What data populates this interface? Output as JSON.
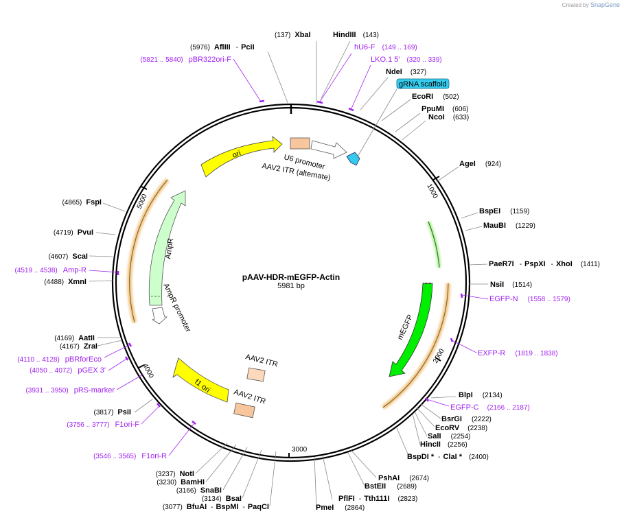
{
  "credit": {
    "prefix": "Created by",
    "brand": "SnapGene"
  },
  "plasmid": {
    "name": "pAAV-HDR-mEGFP-Actin",
    "size": "5981 bp"
  },
  "ticks": [
    "1000",
    "2000",
    "3000",
    "4000",
    "5000"
  ],
  "enzymes_right": [
    {
      "name": "XbaI",
      "pos": "(137)"
    },
    {
      "name": "HindIII",
      "pos": "(143)"
    },
    {
      "name": "NdeI",
      "pos": "(327)"
    },
    {
      "name": "EcoRI",
      "pos": "(502)"
    },
    {
      "name": "PpuMI",
      "pos": "(606)"
    },
    {
      "name": "NcoI",
      "pos": "(633)"
    },
    {
      "name": "AgeI",
      "pos": "(924)"
    },
    {
      "name": "BspEI",
      "pos": "(1159)"
    },
    {
      "name": "MauBI",
      "pos": "(1229)"
    },
    {
      "name": "PaeR7I",
      "sep1": "-",
      "name2": "PspXI",
      "sep2": "-",
      "name3": "XhoI",
      "pos": "(1411)"
    },
    {
      "name": "NsiI",
      "pos": "(1514)"
    },
    {
      "name": "BlpI",
      "pos": "(2134)"
    },
    {
      "name": "BsrGI",
      "pos": "(2222)"
    },
    {
      "name": "EcoRV",
      "pos": "(2238)"
    },
    {
      "name": "SalI",
      "pos": "(2254)"
    },
    {
      "name": "HincII",
      "pos": "(2256)"
    },
    {
      "name": "BspDI *",
      "sep1": "-",
      "name2": "ClaI *",
      "pos": "(2400)"
    },
    {
      "name": "PshAI",
      "pos": "(2674)"
    },
    {
      "name": "BstEII",
      "pos": "(2689)"
    },
    {
      "name": "PflFI",
      "sep1": "-",
      "name2": "Tth111I",
      "pos": "(2823)"
    },
    {
      "name": "PmeI",
      "pos": "(2864)"
    }
  ],
  "enzymes_left": [
    {
      "name": "AflIII",
      "sep1": "-",
      "name2": "PciI",
      "pos": "(5976)"
    },
    {
      "name": "FspI",
      "pos": "(4865)"
    },
    {
      "name": "PvuI",
      "pos": "(4719)"
    },
    {
      "name": "ScaI",
      "pos": "(4607)"
    },
    {
      "name": "XmnI",
      "pos": "(4488)"
    },
    {
      "name": "AatII",
      "pos": "(4169)"
    },
    {
      "name": "ZraI",
      "pos": "(4167)"
    },
    {
      "name": "PsiI",
      "pos": "(3817)"
    },
    {
      "name": "NotI",
      "pos": "(3237)"
    },
    {
      "name": "BamHI",
      "pos": "(3230)"
    },
    {
      "name": "SnaBI",
      "pos": "(3166)"
    },
    {
      "name": "BsaI",
      "pos": "(3134)"
    },
    {
      "name": "BfuAI",
      "sep1": "-",
      "name2": "BspMI",
      "sep2": "-",
      "name3": "PaqCI",
      "pos": "(3077)"
    }
  ],
  "primers": [
    {
      "name": "hU6-F",
      "range": "(149 .. 169)"
    },
    {
      "name": "LKO.1 5'",
      "range": "(320 .. 339)"
    },
    {
      "name": "pBR322ori-F",
      "range": "(5821 .. 5840)"
    },
    {
      "name": "EGFP-N",
      "range": "(1558 .. 1579)"
    },
    {
      "name": "EXFP-R",
      "range": "(1819 .. 1838)"
    },
    {
      "name": "EGFP-C",
      "range": "(2166 .. 2187)"
    },
    {
      "name": "Amp-R",
      "range": "(4519 .. 4538)"
    },
    {
      "name": "pBRforEco",
      "range": "(4110 .. 4128)"
    },
    {
      "name": "pGEX 3'",
      "range": "(4050 .. 4072)"
    },
    {
      "name": "pRS-marker",
      "range": "(3931 .. 3950)"
    },
    {
      "name": "F1ori-F",
      "range": "(3756 .. 3777)"
    },
    {
      "name": "F1ori-R",
      "range": "(3546 .. 3565)"
    }
  ],
  "features": {
    "grna": "gRNA scaffold",
    "ori": "ori",
    "u6": "U6 promoter",
    "itr_alt": "AAV2 ITR (alternate)",
    "ampr": "AmpR",
    "ampr_promoter": "AmpR promoter",
    "megfp": "mEGFP",
    "itr1": "AAV2 ITR",
    "itr2": "AAV2 ITR",
    "f1ori": "f1 ori"
  },
  "colors": {
    "primer": "#a020f0",
    "ori": "#ffff00",
    "egfp": "#00ee00",
    "ampr": "#ccffcc",
    "itr": "#f7c69c",
    "grna": "#33ccee",
    "orf": "#f0c080"
  }
}
